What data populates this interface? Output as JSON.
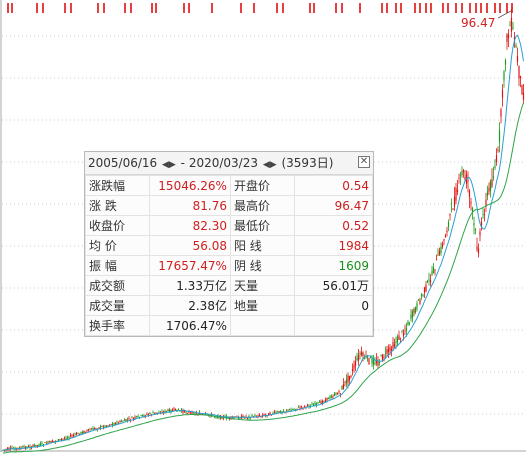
{
  "chart": {
    "high_label": "96.47",
    "colors": {
      "up": "#e01010",
      "down": "#1a9a1a",
      "ma_short": "#2aa0d0",
      "ma_long": "#2fa44a",
      "grid": "#c9c9d9",
      "marker": "#e01010",
      "high_label": "#d02020"
    }
  },
  "panel": {
    "start_date": "2005/06/16",
    "end_date": "2020/03/23",
    "days": "(3593日)",
    "close_icon": "close-icon",
    "rows": [
      {
        "l1": "涨跌幅",
        "v1": "15046.26%",
        "c1": "red",
        "l2": "开盘价",
        "v2": "0.54",
        "c2": "red"
      },
      {
        "l1": "涨  跌",
        "v1": "81.76",
        "c1": "red",
        "l2": "最高价",
        "v2": "96.47",
        "c2": "red"
      },
      {
        "l1": "收盘价",
        "v1": "82.30",
        "c1": "red",
        "l2": "最低价",
        "v2": "0.52",
        "c2": "red"
      },
      {
        "l1": "均  价",
        "v1": "56.08",
        "c1": "red",
        "l2": "阳  线",
        "v2": "1984",
        "c2": "red"
      },
      {
        "l1": "振  幅",
        "v1": "17657.47%",
        "c1": "red",
        "l2": "阴  线",
        "v2": "1609",
        "c2": "green"
      },
      {
        "l1": "成交额",
        "v1": "1.33万亿",
        "c1": "black",
        "l2": "天量",
        "v2": "56.01万",
        "c2": "black"
      },
      {
        "l1": "成交量",
        "v1": "2.38亿",
        "c1": "black",
        "l2": "地量",
        "v2": "0",
        "c2": "black"
      },
      {
        "l1": "换手率",
        "v1": "1706.47%",
        "c1": "black",
        "l2": "",
        "v2": "",
        "c2": "black"
      }
    ]
  }
}
